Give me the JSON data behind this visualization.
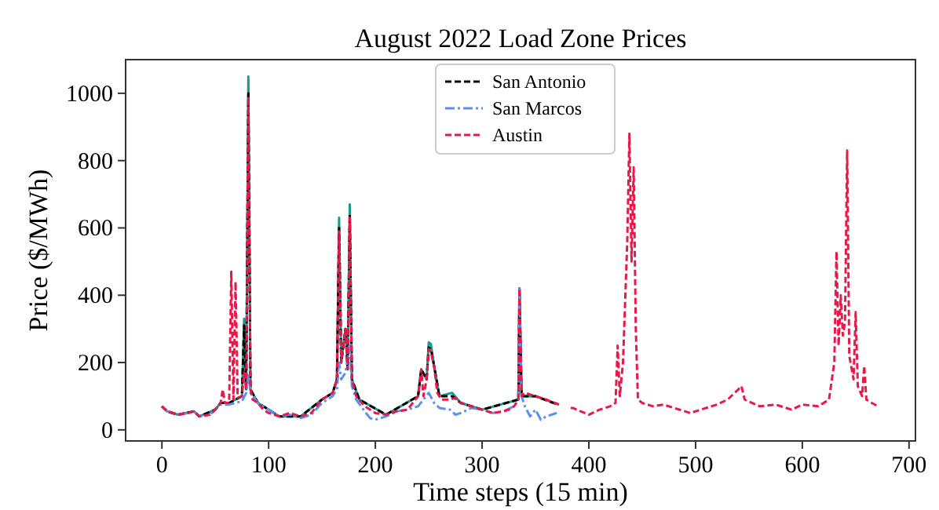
{
  "chart_data": {
    "type": "line",
    "title": "August 2022 Load Zone Prices",
    "xlabel": "Time steps (15 min)",
    "ylabel": "Price ($/MWh)",
    "xlim": [
      -34,
      706
    ],
    "ylim": [
      -33,
      1100
    ],
    "xticks": [
      0,
      100,
      200,
      300,
      400,
      500,
      600,
      700
    ],
    "yticks": [
      0,
      200,
      400,
      600,
      800,
      1000
    ],
    "grid": false,
    "legend": "top",
    "series": [
      {
        "color": "#1a9a8c",
        "line_style": "solid",
        "x": [
          0,
          5,
          15,
          30,
          35,
          50,
          55,
          63,
          75,
          77,
          78,
          79,
          81,
          83,
          90,
          110,
          130,
          150,
          160,
          164,
          166,
          168,
          172,
          174,
          176,
          178,
          185,
          210,
          240,
          243,
          248,
          250,
          252,
          255,
          260,
          272,
          280,
          300,
          334,
          335,
          337,
          350,
          372
        ],
        "values": [
          70,
          55,
          45,
          55,
          40,
          60,
          80,
          80,
          100,
          330,
          180,
          120,
          1050,
          120,
          80,
          40,
          40,
          90,
          110,
          150,
          630,
          200,
          300,
          180,
          670,
          150,
          90,
          45,
          100,
          180,
          150,
          260,
          255,
          190,
          100,
          110,
          80,
          60,
          90,
          420,
          100,
          100,
          75
        ]
      },
      {
        "name": "San Antonio",
        "color": "#000000",
        "line_style": "dashed",
        "x": [
          0,
          5,
          15,
          30,
          35,
          50,
          55,
          63,
          75,
          77,
          79,
          81,
          83,
          90,
          110,
          130,
          150,
          160,
          164,
          166,
          168,
          172,
          174,
          176,
          178,
          185,
          210,
          240,
          243,
          248,
          250,
          252,
          255,
          260,
          272,
          280,
          300,
          334,
          335,
          337,
          350,
          370
        ],
        "values": [
          70,
          55,
          45,
          55,
          40,
          60,
          80,
          80,
          100,
          310,
          120,
          1000,
          120,
          80,
          40,
          40,
          90,
          110,
          150,
          600,
          200,
          300,
          180,
          640,
          150,
          90,
          45,
          100,
          180,
          150,
          245,
          240,
          190,
          100,
          100,
          80,
          60,
          90,
          420,
          100,
          100,
          76
        ]
      },
      {
        "name": "San Marcos",
        "color": "#5b8ff0",
        "line_style": "dashdot",
        "x": [
          0,
          5,
          15,
          25,
          30,
          35,
          45,
          50,
          55,
          63,
          75,
          79,
          81,
          83,
          90,
          100,
          110,
          120,
          130,
          140,
          150,
          160,
          164,
          166,
          168,
          172,
          176,
          178,
          182,
          190,
          195,
          200,
          210,
          220,
          230,
          240,
          245,
          250,
          255,
          260,
          270,
          275,
          280,
          290,
          300,
          310,
          320,
          330,
          334,
          335,
          337,
          340,
          345,
          350,
          355,
          360,
          365,
          370
        ],
        "values": [
          70,
          55,
          45,
          50,
          55,
          40,
          45,
          60,
          75,
          75,
          85,
          110,
          170,
          110,
          80,
          60,
          40,
          45,
          35,
          45,
          80,
          100,
          120,
          200,
          150,
          170,
          250,
          130,
          90,
          55,
          35,
          30,
          40,
          55,
          60,
          70,
          90,
          110,
          80,
          65,
          60,
          45,
          50,
          65,
          60,
          50,
          55,
          70,
          90,
          420,
          100,
          70,
          40,
          60,
          30,
          40,
          45,
          50
        ]
      },
      {
        "name": "Austin",
        "color": "#e8194a",
        "line_style": "dashed",
        "x": [
          0,
          5,
          15,
          25,
          30,
          35,
          45,
          50,
          55,
          57,
          59,
          63,
          65,
          67,
          69,
          71,
          75,
          77,
          79,
          81,
          83,
          85,
          90,
          95,
          100,
          110,
          120,
          130,
          140,
          150,
          160,
          164,
          166,
          168,
          172,
          174,
          176,
          178,
          182,
          190,
          200,
          210,
          220,
          230,
          240,
          243,
          245,
          248,
          250,
          252,
          255,
          258,
          262,
          270,
          275,
          280,
          290,
          300,
          310,
          320,
          325,
          330,
          334,
          335,
          337,
          340,
          350,
          360,
          372,
          null,
          383,
          385,
          400,
          410,
          420,
          425,
          427,
          429,
          432,
          434,
          436,
          438,
          440,
          442,
          444,
          446,
          450,
          460,
          470,
          480,
          495,
          505,
          520,
          530,
          540,
          543,
          546,
          560,
          575,
          590,
          600,
          615,
          625,
          630,
          632,
          634,
          636,
          638,
          640,
          642,
          644,
          648,
          650,
          652,
          656,
          658,
          660,
          665,
          671
        ],
        "values": [
          70,
          55,
          45,
          50,
          55,
          40,
          45,
          60,
          80,
          120,
          80,
          80,
          470,
          90,
          440,
          95,
          100,
          170,
          120,
          990,
          120,
          90,
          80,
          60,
          50,
          40,
          50,
          40,
          50,
          90,
          110,
          150,
          590,
          200,
          300,
          180,
          630,
          150,
          100,
          70,
          50,
          45,
          55,
          60,
          100,
          180,
          100,
          150,
          240,
          230,
          190,
          110,
          90,
          90,
          95,
          80,
          70,
          60,
          50,
          55,
          60,
          70,
          90,
          420,
          100,
          110,
          100,
          90,
          75,
          null,
          65,
          65,
          45,
          60,
          70,
          80,
          250,
          100,
          200,
          380,
          560,
          880,
          500,
          780,
          300,
          90,
          80,
          70,
          75,
          65,
          50,
          60,
          75,
          90,
          120,
          130,
          90,
          70,
          75,
          60,
          75,
          70,
          90,
          200,
          530,
          250,
          400,
          280,
          320,
          830,
          220,
          150,
          350,
          130,
          100,
          190,
          90,
          80,
          70
        ]
      }
    ]
  }
}
